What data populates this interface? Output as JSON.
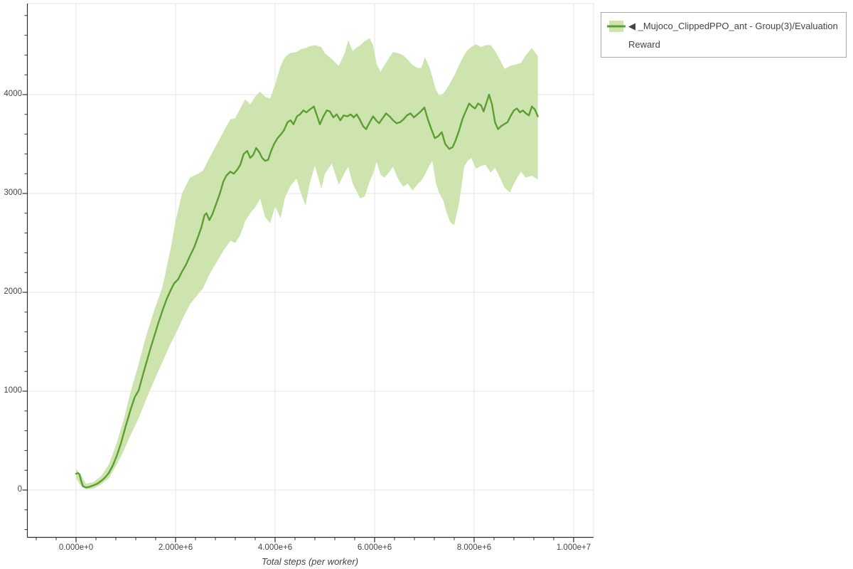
{
  "chart_data": {
    "type": "line",
    "title": "",
    "xlabel": "Total steps (per worker)",
    "ylabel": "",
    "grid": true,
    "legend_position": "top-right",
    "x_axis": {
      "tick_labels": [
        "0.000e+0",
        "2.000e+6",
        "4.000e+6",
        "6.000e+6",
        "8.000e+6",
        "1.000e+7"
      ],
      "tick_values_e6": [
        0,
        2,
        4,
        6,
        8,
        10
      ],
      "minor_step_e6": 0.4,
      "range_e6": [
        -1.0,
        10.4
      ]
    },
    "y_axis": {
      "tick_labels": [
        "0",
        "1000",
        "2000",
        "3000",
        "4000"
      ],
      "tick_values": [
        0,
        1000,
        2000,
        3000,
        4000
      ],
      "minor_step": 200,
      "range": [
        -475,
        4920
      ]
    },
    "series": [
      {
        "name": "◀ _Mujoco_ClippedPPO_ant - Group(3)/Evaluation Reward",
        "color": "#5c9e32",
        "band_color": "#cde4ae",
        "x_unit": "millions of steps",
        "mean": [
          [
            0.0,
            165
          ],
          [
            0.04,
            172
          ],
          [
            0.07,
            158
          ],
          [
            0.1,
            95
          ],
          [
            0.14,
            38
          ],
          [
            0.2,
            26
          ],
          [
            0.27,
            33
          ],
          [
            0.34,
            46
          ],
          [
            0.42,
            62
          ],
          [
            0.5,
            90
          ],
          [
            0.58,
            125
          ],
          [
            0.66,
            175
          ],
          [
            0.74,
            250
          ],
          [
            0.82,
            350
          ],
          [
            0.9,
            470
          ],
          [
            1.0,
            650
          ],
          [
            1.1,
            820
          ],
          [
            1.18,
            940
          ],
          [
            1.26,
            1010
          ],
          [
            1.34,
            1160
          ],
          [
            1.42,
            1300
          ],
          [
            1.5,
            1440
          ],
          [
            1.58,
            1570
          ],
          [
            1.66,
            1700
          ],
          [
            1.74,
            1820
          ],
          [
            1.82,
            1930
          ],
          [
            1.9,
            2020
          ],
          [
            1.97,
            2090
          ],
          [
            2.05,
            2130
          ],
          [
            2.13,
            2210
          ],
          [
            2.21,
            2280
          ],
          [
            2.29,
            2370
          ],
          [
            2.37,
            2450
          ],
          [
            2.45,
            2560
          ],
          [
            2.52,
            2660
          ],
          [
            2.58,
            2780
          ],
          [
            2.62,
            2800
          ],
          [
            2.68,
            2730
          ],
          [
            2.74,
            2790
          ],
          [
            2.82,
            2900
          ],
          [
            2.89,
            3000
          ],
          [
            2.96,
            3120
          ],
          [
            3.02,
            3180
          ],
          [
            3.1,
            3220
          ],
          [
            3.17,
            3200
          ],
          [
            3.24,
            3240
          ],
          [
            3.3,
            3290
          ],
          [
            3.37,
            3400
          ],
          [
            3.44,
            3430
          ],
          [
            3.5,
            3360
          ],
          [
            3.56,
            3390
          ],
          [
            3.62,
            3460
          ],
          [
            3.68,
            3420
          ],
          [
            3.74,
            3360
          ],
          [
            3.8,
            3330
          ],
          [
            3.86,
            3340
          ],
          [
            3.92,
            3430
          ],
          [
            3.98,
            3500
          ],
          [
            4.05,
            3560
          ],
          [
            4.12,
            3600
          ],
          [
            4.18,
            3640
          ],
          [
            4.25,
            3720
          ],
          [
            4.31,
            3740
          ],
          [
            4.37,
            3700
          ],
          [
            4.44,
            3780
          ],
          [
            4.5,
            3800
          ],
          [
            4.57,
            3840
          ],
          [
            4.63,
            3820
          ],
          [
            4.7,
            3850
          ],
          [
            4.78,
            3880
          ],
          [
            4.84,
            3790
          ],
          [
            4.9,
            3700
          ],
          [
            4.97,
            3780
          ],
          [
            5.04,
            3840
          ],
          [
            5.1,
            3830
          ],
          [
            5.17,
            3770
          ],
          [
            5.24,
            3800
          ],
          [
            5.31,
            3740
          ],
          [
            5.38,
            3790
          ],
          [
            5.45,
            3780
          ],
          [
            5.52,
            3800
          ],
          [
            5.58,
            3770
          ],
          [
            5.64,
            3800
          ],
          [
            5.7,
            3750
          ],
          [
            5.77,
            3680
          ],
          [
            5.83,
            3650
          ],
          [
            5.9,
            3720
          ],
          [
            5.97,
            3780
          ],
          [
            6.03,
            3740
          ],
          [
            6.09,
            3710
          ],
          [
            6.16,
            3760
          ],
          [
            6.23,
            3810
          ],
          [
            6.3,
            3780
          ],
          [
            6.37,
            3740
          ],
          [
            6.44,
            3710
          ],
          [
            6.51,
            3720
          ],
          [
            6.58,
            3750
          ],
          [
            6.65,
            3790
          ],
          [
            6.72,
            3810
          ],
          [
            6.79,
            3770
          ],
          [
            6.86,
            3800
          ],
          [
            6.93,
            3830
          ],
          [
            7.0,
            3870
          ],
          [
            7.07,
            3750
          ],
          [
            7.14,
            3650
          ],
          [
            7.21,
            3560
          ],
          [
            7.28,
            3580
          ],
          [
            7.35,
            3620
          ],
          [
            7.42,
            3500
          ],
          [
            7.5,
            3450
          ],
          [
            7.57,
            3470
          ],
          [
            7.63,
            3540
          ],
          [
            7.7,
            3640
          ],
          [
            7.77,
            3760
          ],
          [
            7.84,
            3840
          ],
          [
            7.9,
            3910
          ],
          [
            7.96,
            3880
          ],
          [
            8.02,
            3860
          ],
          [
            8.08,
            3910
          ],
          [
            8.14,
            3890
          ],
          [
            8.19,
            3830
          ],
          [
            8.25,
            3920
          ],
          [
            8.3,
            4000
          ],
          [
            8.36,
            3900
          ],
          [
            8.42,
            3720
          ],
          [
            8.48,
            3650
          ],
          [
            8.54,
            3680
          ],
          [
            8.6,
            3700
          ],
          [
            8.67,
            3720
          ],
          [
            8.74,
            3790
          ],
          [
            8.8,
            3840
          ],
          [
            8.86,
            3860
          ],
          [
            8.92,
            3820
          ],
          [
            8.98,
            3840
          ],
          [
            9.04,
            3810
          ],
          [
            9.1,
            3790
          ],
          [
            9.16,
            3880
          ],
          [
            9.22,
            3850
          ],
          [
            9.28,
            3780
          ]
        ],
        "band": [
          [
            0.0,
            120,
            215
          ],
          [
            0.1,
            40,
            150
          ],
          [
            0.2,
            8,
            62
          ],
          [
            0.35,
            15,
            82
          ],
          [
            0.5,
            55,
            140
          ],
          [
            0.66,
            120,
            260
          ],
          [
            0.82,
            260,
            480
          ],
          [
            0.95,
            390,
            700
          ],
          [
            1.1,
            560,
            1000
          ],
          [
            1.26,
            730,
            1280
          ],
          [
            1.42,
            930,
            1580
          ],
          [
            1.58,
            1120,
            1830
          ],
          [
            1.74,
            1300,
            2060
          ],
          [
            1.9,
            1480,
            2440
          ],
          [
            2.0,
            1580,
            2720
          ],
          [
            2.13,
            1720,
            3000
          ],
          [
            2.29,
            1880,
            3160
          ],
          [
            2.45,
            1980,
            3200
          ],
          [
            2.55,
            2040,
            3230
          ],
          [
            2.68,
            2180,
            3360
          ],
          [
            2.82,
            2300,
            3490
          ],
          [
            2.96,
            2420,
            3620
          ],
          [
            3.1,
            2520,
            3750
          ],
          [
            3.2,
            2500,
            3760
          ],
          [
            3.3,
            2580,
            3860
          ],
          [
            3.4,
            2720,
            3950
          ],
          [
            3.5,
            2800,
            3900
          ],
          [
            3.6,
            2860,
            3980
          ],
          [
            3.7,
            2950,
            4030
          ],
          [
            3.8,
            2760,
            3980
          ],
          [
            3.9,
            2700,
            3960
          ],
          [
            4.0,
            2870,
            4100
          ],
          [
            4.11,
            2750,
            4290
          ],
          [
            4.2,
            2960,
            4380
          ],
          [
            4.3,
            3070,
            4420
          ],
          [
            4.43,
            3150,
            4430
          ],
          [
            4.52,
            3000,
            4460
          ],
          [
            4.61,
            2880,
            4470
          ],
          [
            4.7,
            3110,
            4490
          ],
          [
            4.8,
            3280,
            4500
          ],
          [
            4.93,
            3050,
            4480
          ],
          [
            5.0,
            3200,
            4420
          ],
          [
            5.14,
            3300,
            4360
          ],
          [
            5.28,
            3090,
            4290
          ],
          [
            5.4,
            3210,
            4420
          ],
          [
            5.47,
            3270,
            4550
          ],
          [
            5.56,
            3100,
            4440
          ],
          [
            5.65,
            3010,
            4480
          ],
          [
            5.71,
            2950,
            4500
          ],
          [
            5.8,
            2970,
            4540
          ],
          [
            5.9,
            3120,
            4570
          ],
          [
            5.97,
            3200,
            4500
          ],
          [
            6.04,
            3320,
            4310
          ],
          [
            6.12,
            3190,
            4230
          ],
          [
            6.2,
            3160,
            4300
          ],
          [
            6.3,
            3220,
            4380
          ],
          [
            6.37,
            3270,
            4430
          ],
          [
            6.47,
            3150,
            4420
          ],
          [
            6.57,
            3070,
            4400
          ],
          [
            6.67,
            3100,
            4350
          ],
          [
            6.76,
            3030,
            4300
          ],
          [
            6.86,
            3090,
            4270
          ],
          [
            6.94,
            3130,
            4270
          ],
          [
            7.01,
            3190,
            4380
          ],
          [
            7.1,
            3280,
            4280
          ],
          [
            7.16,
            3330,
            4180
          ],
          [
            7.23,
            3110,
            4050
          ],
          [
            7.3,
            3000,
            3990
          ],
          [
            7.38,
            2930,
            4010
          ],
          [
            7.45,
            2800,
            4060
          ],
          [
            7.52,
            2710,
            4120
          ],
          [
            7.6,
            2680,
            4190
          ],
          [
            7.7,
            2910,
            4300
          ],
          [
            7.8,
            3270,
            4400
          ],
          [
            7.87,
            3330,
            4450
          ],
          [
            7.94,
            3360,
            4480
          ],
          [
            8.04,
            3250,
            4510
          ],
          [
            8.14,
            3280,
            4480
          ],
          [
            8.23,
            3290,
            4500
          ],
          [
            8.33,
            3210,
            4500
          ],
          [
            8.42,
            3260,
            4440
          ],
          [
            8.52,
            3160,
            4350
          ],
          [
            8.61,
            3060,
            4260
          ],
          [
            8.72,
            3010,
            4290
          ],
          [
            8.8,
            3100,
            4300
          ],
          [
            8.88,
            3170,
            4310
          ],
          [
            8.94,
            3220,
            4320
          ],
          [
            9.04,
            3160,
            4400
          ],
          [
            9.16,
            3180,
            4470
          ],
          [
            9.22,
            3160,
            4430
          ],
          [
            9.28,
            3140,
            4390
          ]
        ]
      }
    ]
  },
  "colors": {
    "background": "#ffffff",
    "grid": "#e5e5e5",
    "outline": "#e5e5e5",
    "axis": "#303030",
    "tick_text": "#444444",
    "legend_border": "#a9a9a9",
    "line": "#5c9e32",
    "band": "#cde4ae"
  },
  "legend": {
    "items": [
      {
        "label": "◀ _Mujoco_ClippedPPO_ant - Group(3)/Evaluation Reward"
      }
    ]
  }
}
